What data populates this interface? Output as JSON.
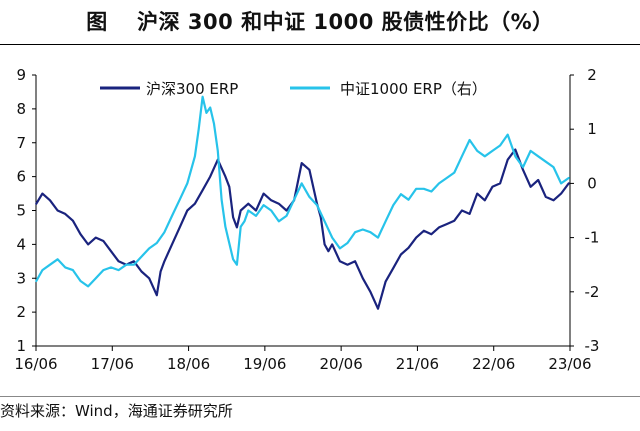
{
  "page": {
    "title": "图　 沪深 300 和中证 1000 股债性价比（%）",
    "source": "资料来源：Wind，海通证券研究所"
  },
  "colors": {
    "series_hs300": "#1a237e",
    "series_zz1000": "#27c3ea",
    "axis": "#000000"
  },
  "chart_data": {
    "type": "line",
    "title": "沪深 300 和中证 1000 股债性价比（%）",
    "grid": false,
    "legend_placement": "top",
    "x_tick_labels": [
      "16/06",
      "17/06",
      "18/06",
      "19/06",
      "20/06",
      "21/06",
      "22/06",
      "23/06"
    ],
    "x_tick_positions": [
      2016.4167,
      2017.4167,
      2018.4167,
      2019.4167,
      2020.4167,
      2021.4167,
      2022.4167,
      2023.4167
    ],
    "xlim": [
      2016.4167,
      2023.4167
    ],
    "y_left": {
      "lim": [
        1,
        9
      ],
      "ticks": [
        1,
        2,
        3,
        4,
        5,
        6,
        7,
        8,
        9
      ]
    },
    "y_right": {
      "lim": [
        -3,
        2
      ],
      "ticks": [
        -3,
        -2,
        -1,
        0,
        1,
        2
      ]
    },
    "series": [
      {
        "name": "沪深300 ERP",
        "axis": "left",
        "x": [
          2016.42,
          2016.5,
          2016.6,
          2016.7,
          2016.8,
          2016.9,
          2017.0,
          2017.1,
          2017.2,
          2017.3,
          2017.4,
          2017.5,
          2017.6,
          2017.7,
          2017.8,
          2017.9,
          2018.0,
          2018.05,
          2018.1,
          2018.2,
          2018.3,
          2018.4,
          2018.5,
          2018.6,
          2018.7,
          2018.8,
          2018.9,
          2018.95,
          2019.0,
          2019.05,
          2019.1,
          2019.2,
          2019.3,
          2019.4,
          2019.5,
          2019.6,
          2019.7,
          2019.8,
          2019.9,
          2020.0,
          2020.1,
          2020.15,
          2020.2,
          2020.25,
          2020.3,
          2020.4,
          2020.5,
          2020.6,
          2020.7,
          2020.8,
          2020.9,
          2021.0,
          2021.1,
          2021.2,
          2021.3,
          2021.4,
          2021.5,
          2021.6,
          2021.7,
          2021.8,
          2021.9,
          2022.0,
          2022.1,
          2022.2,
          2022.3,
          2022.4,
          2022.5,
          2022.6,
          2022.7,
          2022.8,
          2022.9,
          2023.0,
          2023.1,
          2023.2,
          2023.3,
          2023.4
        ],
        "values": [
          5.2,
          5.5,
          5.3,
          5.0,
          4.9,
          4.7,
          4.3,
          4.0,
          4.2,
          4.1,
          3.8,
          3.5,
          3.4,
          3.5,
          3.2,
          3.0,
          2.5,
          3.2,
          3.5,
          4.0,
          4.5,
          5.0,
          5.2,
          5.6,
          6.0,
          6.5,
          6.0,
          5.7,
          4.8,
          4.5,
          5.0,
          5.2,
          5.0,
          5.5,
          5.3,
          5.2,
          5.0,
          5.3,
          6.4,
          6.2,
          5.2,
          4.8,
          4.0,
          3.8,
          4.0,
          3.5,
          3.4,
          3.5,
          3.0,
          2.6,
          2.1,
          2.9,
          3.3,
          3.7,
          3.9,
          4.2,
          4.4,
          4.3,
          4.5,
          4.6,
          4.7,
          5.0,
          4.9,
          5.5,
          5.3,
          5.7,
          5.8,
          6.5,
          6.8,
          6.2,
          5.7,
          5.9,
          5.4,
          5.3,
          5.5,
          5.8
        ]
      },
      {
        "name": "中证1000 ERP（右）",
        "axis": "right",
        "x": [
          2016.42,
          2016.5,
          2016.6,
          2016.7,
          2016.8,
          2016.9,
          2017.0,
          2017.1,
          2017.2,
          2017.3,
          2017.4,
          2017.5,
          2017.6,
          2017.7,
          2017.8,
          2017.9,
          2018.0,
          2018.1,
          2018.2,
          2018.3,
          2018.4,
          2018.5,
          2018.55,
          2018.6,
          2018.65,
          2018.7,
          2018.75,
          2018.8,
          2018.85,
          2018.9,
          2019.0,
          2019.05,
          2019.1,
          2019.15,
          2019.2,
          2019.3,
          2019.4,
          2019.5,
          2019.6,
          2019.7,
          2019.8,
          2019.9,
          2020.0,
          2020.1,
          2020.2,
          2020.3,
          2020.4,
          2020.5,
          2020.6,
          2020.7,
          2020.8,
          2020.9,
          2021.0,
          2021.1,
          2021.2,
          2021.3,
          2021.4,
          2021.5,
          2021.6,
          2021.7,
          2021.8,
          2021.9,
          2022.0,
          2022.1,
          2022.2,
          2022.3,
          2022.4,
          2022.5,
          2022.6,
          2022.7,
          2022.8,
          2022.9,
          2023.0,
          2023.1,
          2023.2,
          2023.3,
          2023.4
        ],
        "values": [
          -1.8,
          -1.6,
          -1.5,
          -1.4,
          -1.55,
          -1.6,
          -1.8,
          -1.9,
          -1.75,
          -1.6,
          -1.55,
          -1.6,
          -1.5,
          -1.5,
          -1.35,
          -1.2,
          -1.1,
          -0.9,
          -0.6,
          -0.3,
          0.0,
          0.5,
          1.0,
          1.6,
          1.3,
          1.4,
          1.1,
          0.6,
          -0.3,
          -0.8,
          -1.4,
          -1.5,
          -0.8,
          -0.7,
          -0.5,
          -0.6,
          -0.4,
          -0.5,
          -0.7,
          -0.6,
          -0.3,
          0.0,
          -0.25,
          -0.4,
          -0.7,
          -1.0,
          -1.2,
          -1.1,
          -0.9,
          -0.85,
          -0.9,
          -1.0,
          -0.7,
          -0.4,
          -0.2,
          -0.3,
          -0.1,
          -0.1,
          -0.15,
          0.0,
          0.1,
          0.2,
          0.5,
          0.8,
          0.6,
          0.5,
          0.6,
          0.7,
          0.9,
          0.5,
          0.3,
          0.6,
          0.5,
          0.4,
          0.3,
          0.0,
          0.1
        ]
      }
    ]
  }
}
